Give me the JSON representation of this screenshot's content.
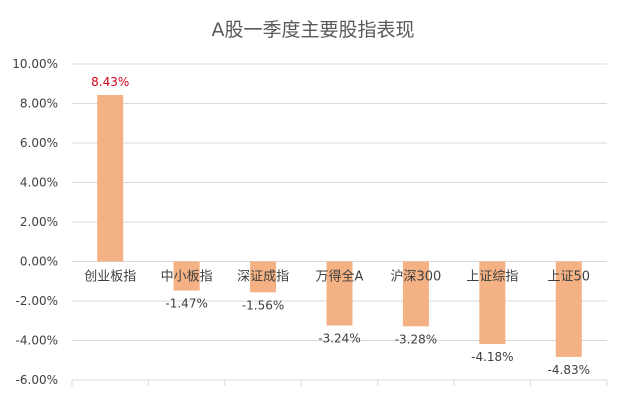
{
  "chart_data": {
    "type": "bar",
    "title": "A股一季度主要股指表现",
    "xlabel": "",
    "ylabel": "",
    "categories": [
      "创业板指",
      "中小板指",
      "深证成指",
      "万得全A",
      "沪深300",
      "上证综指",
      "上证50"
    ],
    "values": [
      8.43,
      -1.47,
      -1.56,
      -3.24,
      -3.28,
      -4.18,
      -4.83
    ],
    "data_labels": [
      "8.43%",
      "-1.47%",
      "-1.56%",
      "-3.24%",
      "-3.28%",
      "-4.18%",
      "-4.83%"
    ],
    "ylim": [
      -6,
      10
    ],
    "yticks": [
      10,
      8,
      6,
      4,
      2,
      0,
      -2,
      -4,
      -6
    ],
    "ytick_labels": [
      "10.00%",
      "8.00%",
      "6.00%",
      "4.00%",
      "2.00%",
      "0.00%",
      "-2.00%",
      "-4.00%",
      "-6.00%"
    ],
    "grid": true,
    "legend": "none",
    "colors": {
      "bar": "#f4b183",
      "highlight_label": "#d0021b",
      "grid": "#d9d9d9",
      "text": "#404040"
    }
  }
}
